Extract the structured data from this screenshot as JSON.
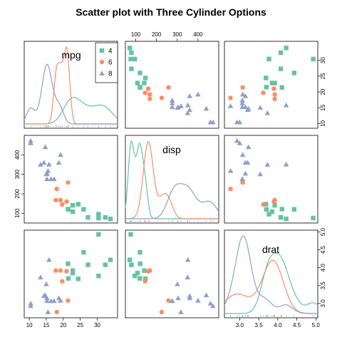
{
  "chart_data": {
    "type": "scatter",
    "title": "Scatter plot with Three Cylinder Options",
    "variables": [
      {
        "name": "mpg",
        "range": [
          8.5,
          36
        ],
        "ticks": [
          10,
          15,
          20,
          25,
          30
        ]
      },
      {
        "name": "disp",
        "range": [
          50,
          500
        ],
        "ticks": [
          100,
          200,
          300,
          400
        ]
      },
      {
        "name": "drat",
        "range": [
          2.6,
          5.05
        ],
        "ticks": [
          3.0,
          3.5,
          4.0,
          4.5,
          5.0
        ]
      }
    ],
    "tick_labels": {
      "mpg": [
        "10",
        "15",
        "20",
        "25",
        "30"
      ],
      "disp": [
        "100",
        "200",
        "300",
        "400"
      ],
      "drat": [
        "3.0",
        "3.5",
        "4.0",
        "4.5",
        "5.0"
      ]
    },
    "legend": {
      "entries": [
        "4",
        "6",
        "8"
      ]
    },
    "groups": [
      {
        "name": "4",
        "color": "#66c2a5",
        "marker": "square",
        "mpg": [
          22.8,
          24.4,
          22.8,
          32.4,
          30.4,
          33.9,
          21.5,
          27.3,
          26.0,
          30.4,
          21.4
        ],
        "disp": [
          108.0,
          146.7,
          140.8,
          78.7,
          75.7,
          71.1,
          120.1,
          79.0,
          120.3,
          95.1,
          121.0
        ],
        "drat": [
          3.85,
          3.69,
          3.92,
          4.08,
          4.93,
          4.22,
          3.7,
          4.08,
          4.43,
          3.77,
          4.11
        ]
      },
      {
        "name": "6",
        "color": "#fc8d62",
        "marker": "circle",
        "mpg": [
          21.0,
          21.0,
          21.4,
          18.1,
          19.2,
          17.8,
          19.7
        ],
        "disp": [
          160.0,
          160.0,
          258.0,
          225.0,
          167.6,
          167.6,
          145.0
        ],
        "drat": [
          3.9,
          3.9,
          3.08,
          2.76,
          3.92,
          3.92,
          3.62
        ]
      },
      {
        "name": "8",
        "color": "#8da0cb",
        "marker": "triangle",
        "mpg": [
          18.7,
          14.3,
          16.4,
          17.3,
          15.2,
          10.4,
          10.4,
          14.7,
          15.5,
          15.2,
          13.3,
          19.2,
          15.8,
          15.0
        ],
        "disp": [
          360.0,
          360.0,
          275.8,
          275.8,
          275.8,
          472.0,
          460.0,
          440.0,
          318.0,
          304.0,
          350.0,
          400.0,
          351.0,
          301.0
        ],
        "drat": [
          3.15,
          3.21,
          3.07,
          3.07,
          3.07,
          2.93,
          3.0,
          3.23,
          2.76,
          3.15,
          3.73,
          3.08,
          4.22,
          3.54
        ]
      }
    ],
    "diagonal": "density",
    "grid": false
  }
}
